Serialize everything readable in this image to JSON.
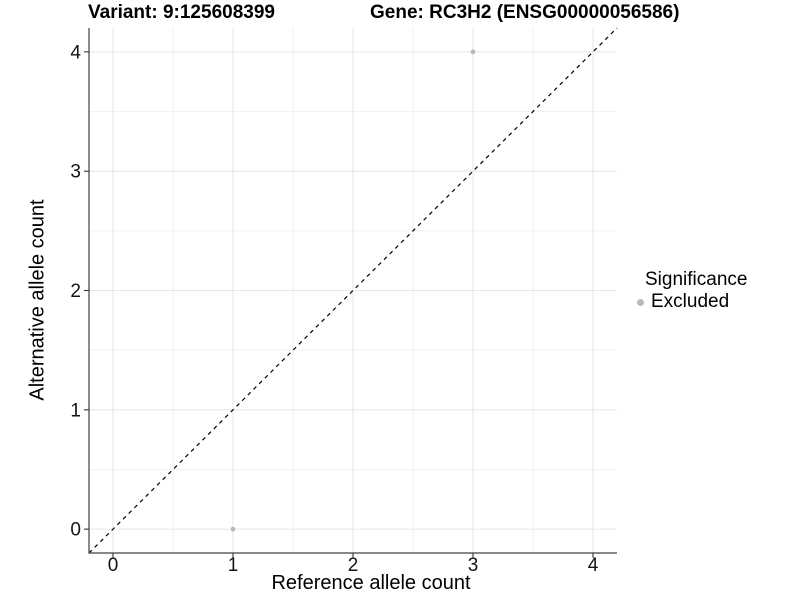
{
  "chart_data": {
    "type": "scatter",
    "title_left": "Variant: 9:125608399",
    "title_right": "Gene: RC3H2 (ENSG00000056586)",
    "xlabel": "Reference allele count",
    "ylabel": "Alternative allele count",
    "xlim": [
      -0.2,
      4.2
    ],
    "ylim": [
      -0.2,
      4.2
    ],
    "x_ticks": [
      0,
      1,
      2,
      3,
      4
    ],
    "y_ticks": [
      0,
      1,
      2,
      3,
      4
    ],
    "minor_gridlines": [
      0.5,
      1.5,
      2.5,
      3.5
    ],
    "grid": "major+minor",
    "identity_line": {
      "equation": "y = x",
      "style": "dashed",
      "color": "#000000"
    },
    "series": [
      {
        "name": "Excluded",
        "color": "#b9b9b9",
        "points": [
          [
            1,
            0
          ],
          [
            3,
            4
          ]
        ]
      }
    ],
    "legend": {
      "title": "Significance",
      "position": "right",
      "items": [
        {
          "label": "Excluded",
          "color": "#b9b9b9",
          "marker": "circle"
        }
      ]
    },
    "colors": {
      "axis": "#404040",
      "tick": "#333333",
      "tick_text": "#141414",
      "grid_major": "#e6e6e6",
      "grid_minor": "#f2f2f2"
    }
  }
}
